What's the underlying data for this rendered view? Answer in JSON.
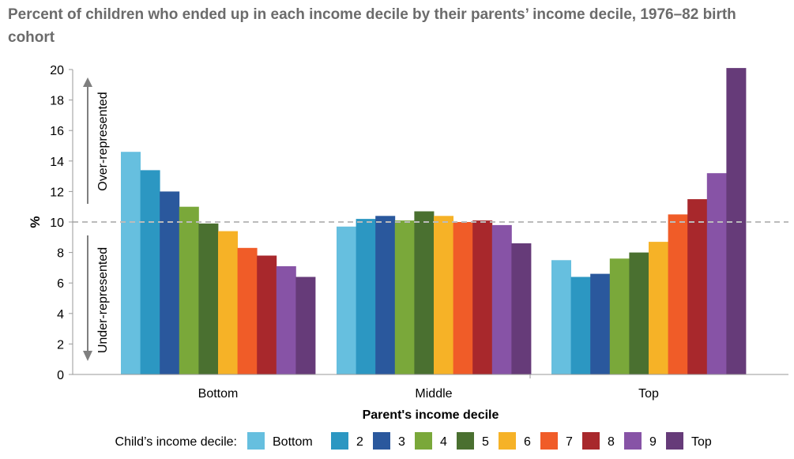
{
  "title": "Percent of children who ended up in each income decile by their parents’ income decile, 1976–82 birth cohort",
  "colors": {
    "series": [
      "#66bfdf",
      "#2c97c2",
      "#2a589d",
      "#7aa83a",
      "#4a7030",
      "#f6b227",
      "#f05c28",
      "#a8282c",
      "#8753a6",
      "#663b79"
    ],
    "reference_line": "#bbbbbb",
    "axis": "#999999",
    "arrow": "#7f7f7f"
  },
  "chart_data": {
    "type": "bar",
    "title": "Percent of children who ended up in each income decile by their parents’ income decile, 1976–82 birth cohort",
    "xlabel": "Parent's income decile",
    "ylabel": "%",
    "ylim": [
      0,
      20
    ],
    "yticks": [
      0,
      2,
      4,
      6,
      8,
      10,
      12,
      14,
      16,
      18,
      20
    ],
    "reference_line": 10,
    "grid": false,
    "categories": [
      "Bottom",
      "Middle",
      "Top"
    ],
    "legend_title": "Child’s income decile:",
    "legend_position": "bottom",
    "annotations": {
      "over": "Over-represented",
      "under": "Under-represented"
    },
    "series": [
      {
        "name": "Bottom",
        "values": [
          14.6,
          9.7,
          7.5
        ]
      },
      {
        "name": "2",
        "values": [
          13.4,
          10.2,
          6.4
        ]
      },
      {
        "name": "3",
        "values": [
          12.0,
          10.4,
          6.6
        ]
      },
      {
        "name": "4",
        "values": [
          11.0,
          10.1,
          7.6
        ]
      },
      {
        "name": "5",
        "values": [
          9.9,
          10.7,
          8.0
        ]
      },
      {
        "name": "6",
        "values": [
          9.4,
          10.4,
          8.7
        ]
      },
      {
        "name": "7",
        "values": [
          8.3,
          10.0,
          10.5
        ]
      },
      {
        "name": "8",
        "values": [
          7.8,
          10.1,
          11.5
        ]
      },
      {
        "name": "9",
        "values": [
          7.1,
          9.8,
          13.2
        ]
      },
      {
        "name": "Top",
        "values": [
          6.4,
          8.6,
          20.1
        ]
      }
    ]
  }
}
